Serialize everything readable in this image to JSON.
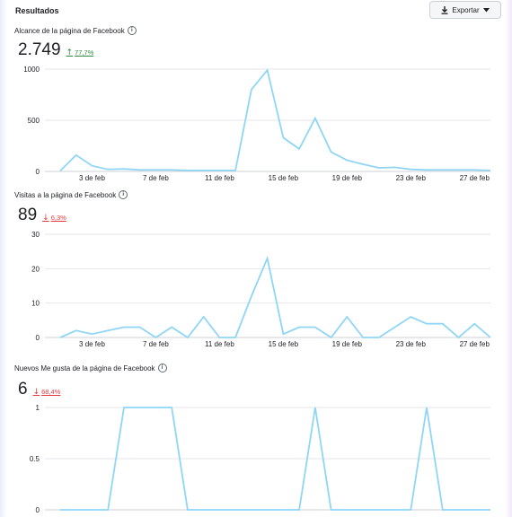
{
  "header": {
    "title": "Resultados",
    "export_label": "Exportar",
    "export_icon": "download-icon"
  },
  "metrics": [
    {
      "label": "Alcance de la página de Facebook",
      "value": "2.749",
      "delta": "77,7%",
      "direction": "up"
    },
    {
      "label": "Visitas a la página de Facebook",
      "value": "89",
      "delta": "6,3%",
      "direction": "down"
    },
    {
      "label": "Nuevos Me gusta de la página de Facebook",
      "value": "6",
      "delta": "68,4%",
      "direction": "down"
    }
  ],
  "chart_data": [
    {
      "type": "line",
      "x": [
        "1 feb",
        "2 feb",
        "3 feb",
        "4 feb",
        "5 feb",
        "6 feb",
        "7 feb",
        "8 feb",
        "9 feb",
        "10 feb",
        "11 feb",
        "12 feb",
        "13 feb",
        "14 feb",
        "15 feb",
        "16 feb",
        "17 feb",
        "18 feb",
        "19 feb",
        "20 feb",
        "21 feb",
        "22 feb",
        "23 feb",
        "24 feb",
        "25 feb",
        "26 feb",
        "27 feb",
        "28 feb"
      ],
      "xticks": [
        "3 de feb",
        "7 de feb",
        "11 de feb",
        "15 de feb",
        "19 de feb",
        "23 de feb",
        "27 de feb"
      ],
      "yticks": [
        "0",
        "500",
        "1000"
      ],
      "ylim": [
        0,
        1000
      ],
      "values": [
        5,
        160,
        55,
        20,
        25,
        15,
        15,
        15,
        10,
        10,
        10,
        10,
        800,
        990,
        330,
        220,
        520,
        190,
        110,
        70,
        35,
        40,
        20,
        15,
        15,
        15,
        15,
        10
      ],
      "color": "#8fd6f6"
    },
    {
      "type": "line",
      "x": [
        "1 feb",
        "2 feb",
        "3 feb",
        "4 feb",
        "5 feb",
        "6 feb",
        "7 feb",
        "8 feb",
        "9 feb",
        "10 feb",
        "11 feb",
        "12 feb",
        "13 feb",
        "14 feb",
        "15 feb",
        "16 feb",
        "17 feb",
        "18 feb",
        "19 feb",
        "20 feb",
        "21 feb",
        "22 feb",
        "23 feb",
        "24 feb",
        "25 feb",
        "26 feb",
        "27 feb",
        "28 feb"
      ],
      "xticks": [
        "3 de feb",
        "7 de feb",
        "11 de feb",
        "15 de feb",
        "19 de feb",
        "23 de feb",
        "27 de feb"
      ],
      "yticks": [
        "0",
        "10",
        "20",
        "30"
      ],
      "ylim": [
        0,
        30
      ],
      "values": [
        0,
        2,
        1,
        2,
        3,
        3,
        0,
        3,
        0,
        6,
        0,
        0,
        12,
        23,
        1,
        3,
        3,
        0,
        6,
        0,
        0,
        3,
        6,
        4,
        4,
        0,
        4,
        0
      ],
      "color": "#8fd6f6"
    },
    {
      "type": "line",
      "x": [
        "1 feb",
        "2 feb",
        "3 feb",
        "4 feb",
        "5 feb",
        "6 feb",
        "7 feb",
        "8 feb",
        "9 feb",
        "10 feb",
        "11 feb",
        "12 feb",
        "13 feb",
        "14 feb",
        "15 feb",
        "16 feb",
        "17 feb",
        "18 feb",
        "19 feb",
        "20 feb",
        "21 feb",
        "22 feb",
        "23 feb",
        "24 feb",
        "25 feb",
        "26 feb",
        "27 feb",
        "28 feb"
      ],
      "yticks": [
        "0",
        "0.5",
        "1"
      ],
      "ylim": [
        0,
        1
      ],
      "values": [
        0,
        0,
        0,
        0,
        1,
        1,
        1,
        1,
        0,
        0,
        0,
        0,
        0,
        0,
        0,
        0,
        1,
        0,
        0,
        0,
        0,
        0,
        0,
        1,
        0,
        0,
        0,
        0
      ],
      "color": "#8fd6f6"
    }
  ]
}
